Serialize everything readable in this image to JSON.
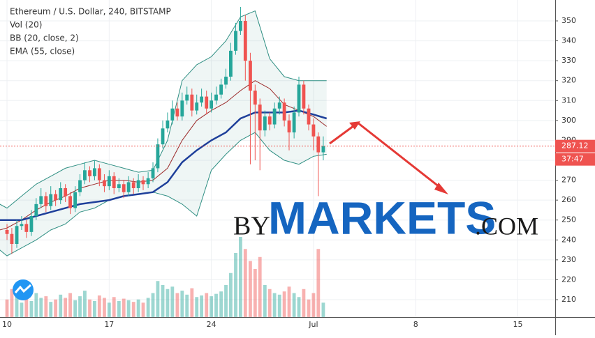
{
  "chart_data": {
    "type": "candlestick",
    "title": "Ethereum / U.S. Dollar, 240, BITSTAMP",
    "indicators": [
      "Vol (20)",
      "BB (20, close, 2)",
      "EMA (55, close)"
    ],
    "watermark": {
      "prefix": "BY",
      "main": "MARKETS",
      "suffix": ".COM"
    },
    "countdown": "37:47",
    "up_color": "#26a69a",
    "down_color": "#ef5350",
    "x": [
      10,
      10.33,
      10.67,
      11,
      11.33,
      11.67,
      12,
      12.33,
      12.67,
      13,
      13.33,
      13.67,
      14,
      14.33,
      14.67,
      15,
      15.33,
      15.67,
      16,
      16.33,
      16.67,
      17,
      17.33,
      17.67,
      18,
      18.33,
      18.67,
      19,
      19.33,
      19.67,
      20,
      20.33,
      20.67,
      21,
      21.33,
      21.67,
      22,
      22.33,
      22.67,
      23,
      23.33,
      23.67,
      24,
      24.33,
      24.67,
      25,
      25.33,
      25.67,
      26,
      26.33,
      26.67,
      27,
      27.33,
      27.67,
      28,
      28.33,
      28.67,
      29,
      29.33,
      29.67,
      30,
      30.33,
      30.67,
      31,
      31.33,
      31.67
    ],
    "open": [
      245,
      243,
      238,
      247,
      248,
      244,
      252,
      258,
      262,
      257,
      263,
      260,
      266,
      262,
      256,
      264,
      270,
      275,
      272,
      276,
      270,
      267,
      272,
      266,
      268,
      264,
      269,
      266,
      270,
      268,
      271,
      276,
      288,
      296,
      300,
      306,
      302,
      310,
      313,
      305,
      309,
      312,
      306,
      310,
      313,
      318,
      322,
      335,
      345,
      350,
      330,
      315,
      308,
      295,
      302,
      298,
      306,
      309,
      300,
      294,
      304,
      318,
      306,
      298,
      292,
      284
    ],
    "high": [
      248,
      246,
      250,
      252,
      250,
      255,
      261,
      266,
      264,
      267,
      265,
      269,
      268,
      264,
      267,
      273,
      279,
      277,
      280,
      278,
      273,
      275,
      274,
      271,
      270,
      272,
      271,
      273,
      272,
      274,
      279,
      291,
      300,
      304,
      310,
      309,
      314,
      317,
      316,
      313,
      316,
      315,
      314,
      317,
      321,
      326,
      339,
      349,
      357,
      353,
      334,
      318,
      311,
      305,
      304,
      309,
      312,
      311,
      303,
      307,
      322,
      320,
      308,
      301,
      294,
      292
    ],
    "low": [
      240,
      233,
      236,
      245,
      241,
      242,
      250,
      256,
      254,
      255,
      257,
      258,
      259,
      253,
      254,
      262,
      268,
      269,
      270,
      267,
      264,
      265,
      263,
      264,
      261,
      262,
      263,
      264,
      265,
      266,
      269,
      274,
      286,
      294,
      298,
      300,
      300,
      308,
      302,
      303,
      307,
      303,
      304,
      308,
      311,
      316,
      320,
      333,
      343,
      320,
      278,
      280,
      275,
      292,
      295,
      296,
      303,
      297,
      285,
      291,
      302,
      303,
      295,
      285,
      262,
      280
    ],
    "close": [
      243,
      238,
      247,
      248,
      244,
      252,
      258,
      262,
      257,
      263,
      260,
      266,
      262,
      256,
      264,
      270,
      275,
      272,
      276,
      270,
      267,
      272,
      266,
      268,
      264,
      269,
      266,
      270,
      268,
      271,
      276,
      288,
      296,
      300,
      306,
      302,
      310,
      313,
      305,
      309,
      312,
      306,
      310,
      313,
      318,
      322,
      335,
      345,
      350,
      330,
      315,
      308,
      295,
      302,
      298,
      306,
      309,
      300,
      294,
      304,
      318,
      306,
      298,
      292,
      284,
      287.12
    ],
    "volume": [
      22,
      35,
      28,
      18,
      25,
      20,
      30,
      24,
      26,
      19,
      22,
      28,
      24,
      30,
      21,
      26,
      33,
      22,
      20,
      27,
      24,
      18,
      25,
      20,
      23,
      21,
      19,
      22,
      18,
      24,
      30,
      45,
      40,
      35,
      38,
      30,
      33,
      28,
      36,
      25,
      27,
      30,
      26,
      29,
      32,
      40,
      55,
      80,
      100,
      85,
      70,
      60,
      75,
      40,
      35,
      30,
      28,
      32,
      38,
      30,
      25,
      35,
      22,
      30,
      85,
      18
    ],
    "indicator_x": [
      9.5,
      10,
      11,
      12,
      13,
      14,
      15,
      16,
      17,
      18,
      19,
      20,
      21,
      22,
      23,
      24,
      25,
      26,
      27,
      28,
      29,
      30,
      31,
      31.9
    ],
    "ema": [
      250,
      250,
      250,
      252,
      254,
      256,
      258,
      259,
      260,
      262,
      263,
      264,
      269,
      279,
      285,
      290,
      294,
      301,
      304,
      304,
      304,
      305,
      303,
      301
    ],
    "ema_color": "#1e3f9a",
    "bb_basis": [
      245,
      246,
      250,
      255,
      259,
      262,
      266,
      268,
      270,
      270,
      269,
      270,
      276,
      290,
      300,
      305,
      309,
      315,
      320,
      316,
      308,
      305,
      302,
      297
    ],
    "bb_basis_color": "#9c2b2b",
    "bb_upper": [
      258,
      256,
      262,
      268,
      272,
      276,
      278,
      280,
      278,
      276,
      274,
      275,
      290,
      320,
      328,
      332,
      340,
      352,
      355,
      331,
      322,
      320,
      320,
      320
    ],
    "bb_lower": [
      235,
      232,
      236,
      240,
      245,
      248,
      254,
      256,
      260,
      262,
      263,
      264,
      262,
      258,
      252,
      275,
      283,
      290,
      294,
      285,
      280,
      278,
      282,
      283
    ],
    "bb_color": "#2f8f83",
    "xlim": [
      9.52,
      47.56
    ],
    "ylim": [
      201.25,
      360.5
    ],
    "xticks": [
      10,
      17,
      24,
      {
        "value": 31,
        "label": "Jul"
      },
      {
        "value": 38,
        "label": "8"
      },
      {
        "value": 45,
        "label": "15"
      }
    ],
    "yticks": [
      210,
      220,
      230,
      240,
      250,
      260,
      270,
      280,
      290,
      300,
      310,
      320,
      330,
      340,
      350
    ]
  }
}
